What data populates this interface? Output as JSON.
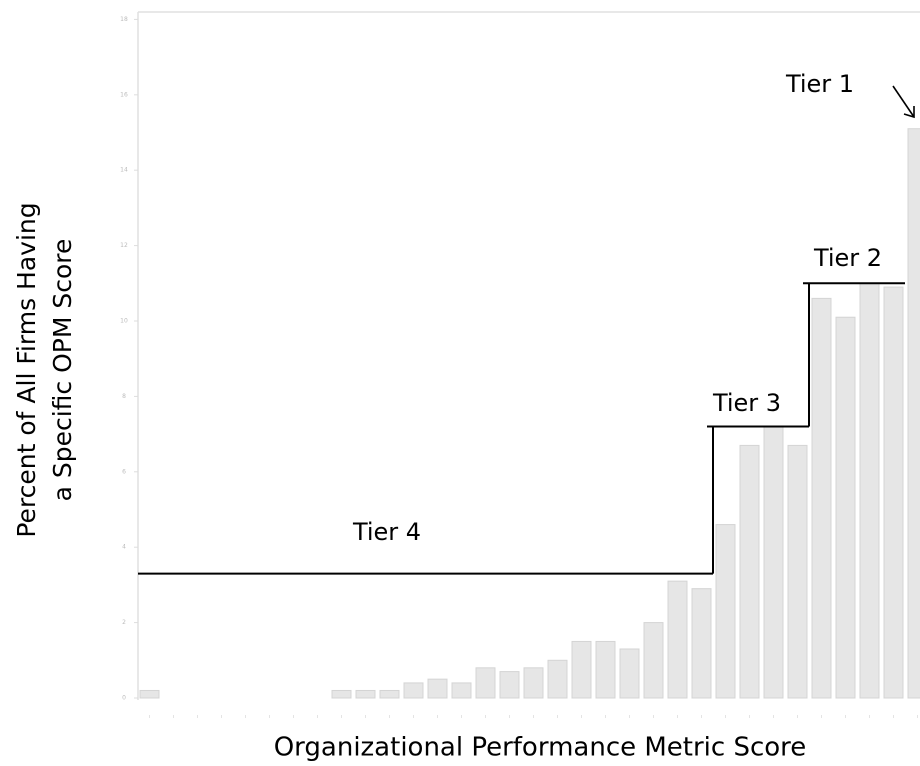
{
  "chart_data": {
    "type": "bar",
    "ylabel": [
      "Percent of All Firms Having",
      "a Specific OPM Score"
    ],
    "xlabel": "Organizational Performance Metric Score",
    "categories": [
      null,
      null,
      null,
      null,
      null,
      null,
      null,
      null,
      null,
      null,
      null,
      null,
      null,
      null,
      null,
      null,
      null,
      null,
      null,
      null,
      null,
      null,
      null,
      null,
      null,
      null,
      null,
      null,
      null,
      null,
      null,
      null,
      null
    ],
    "values": [
      0.2,
      0,
      0,
      0,
      0,
      0,
      0,
      0,
      0.2,
      0.2,
      0.2,
      0.4,
      0.5,
      0.4,
      0.8,
      0.7,
      0.8,
      1.0,
      1.5,
      1.5,
      1.3,
      2.0,
      3.1,
      2.9,
      4.6,
      6.7,
      7.2,
      6.7,
      10.6,
      10.1,
      11.0,
      10.9,
      15.1
    ],
    "color": "#e6e6e6",
    "ylim": [
      0,
      18
    ],
    "yticks": [
      0,
      2,
      4,
      6,
      8,
      10,
      12,
      14,
      16,
      18
    ],
    "tiers": [
      {
        "label": "Tier 4",
        "level": 3.3,
        "from": 0,
        "to": 23
      },
      {
        "label": "Tier 3",
        "level": 7.2,
        "from": 24,
        "to": 27
      },
      {
        "label": "Tier 2",
        "level": 11.0,
        "from": 28,
        "to": 31
      },
      {
        "label": "Tier 1",
        "from": 32,
        "to": 32
      }
    ]
  }
}
